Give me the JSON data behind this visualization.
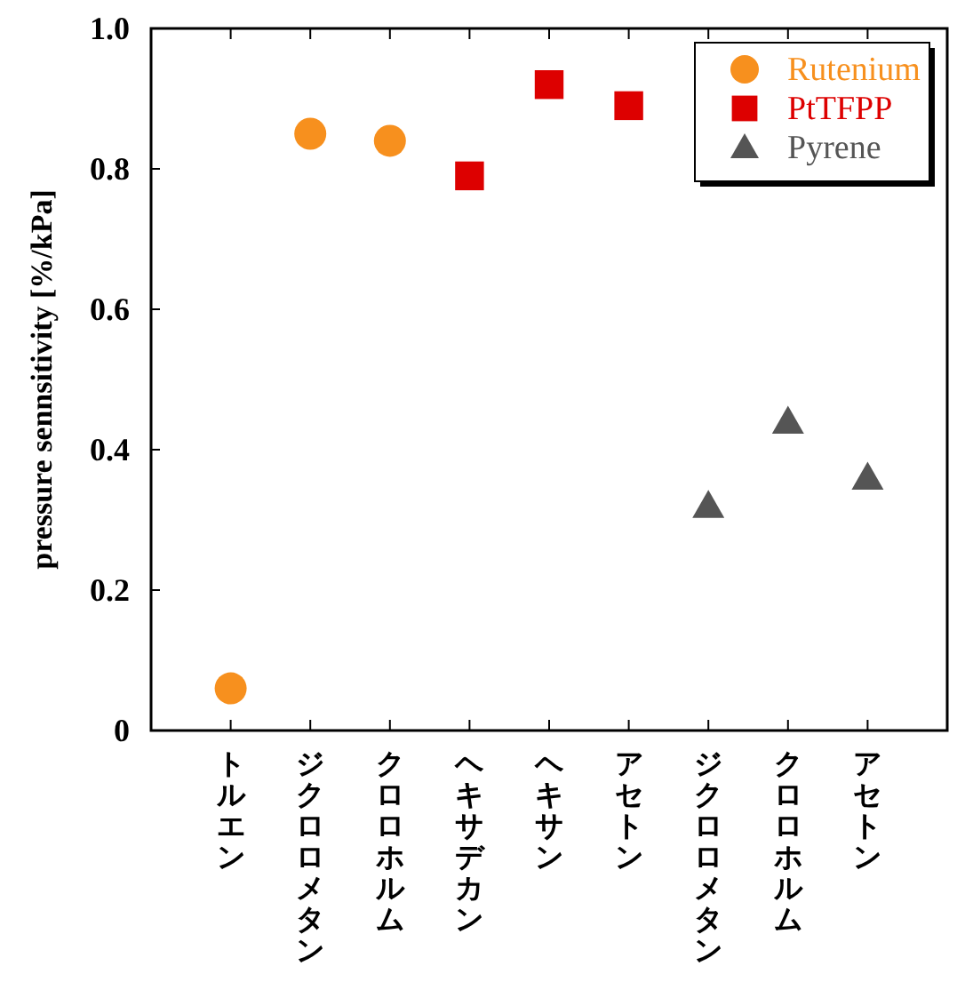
{
  "chart_data": {
    "type": "scatter",
    "ylabel": "pressure sennsitivity [%/kPa]",
    "categories": [
      "トルエン",
      "ジクロロメタン",
      "クロロホルム",
      "ヘキサデカン",
      "ヘキサン",
      "アセトン",
      "ジクロロメタン",
      "クロロホルム",
      "アセトン"
    ],
    "series": [
      {
        "name": "Rutenium",
        "color": "#f7901e",
        "marker": "circle",
        "values": [
          0.06,
          0.85,
          0.84,
          null,
          null,
          null,
          null,
          null,
          null
        ]
      },
      {
        "name": "PtTFPP",
        "color": "#dd0000",
        "marker": "square",
        "values": [
          null,
          null,
          null,
          0.79,
          0.92,
          0.89,
          null,
          null,
          null
        ]
      },
      {
        "name": "Pyrene",
        "color": "#555555",
        "marker": "triangle",
        "values": [
          null,
          null,
          null,
          null,
          null,
          null,
          0.32,
          0.44,
          0.36
        ]
      }
    ],
    "ylim": [
      0,
      1.0
    ],
    "yticks": [
      {
        "value": 0,
        "label": "0"
      },
      {
        "value": 0.2,
        "label": "0.2"
      },
      {
        "value": 0.4,
        "label": "0.4"
      },
      {
        "value": 0.6,
        "label": "0.6"
      },
      {
        "value": 0.8,
        "label": "0.8"
      },
      {
        "value": 1.0,
        "label": "1.0"
      }
    ],
    "grid": false,
    "legend": "top right"
  }
}
